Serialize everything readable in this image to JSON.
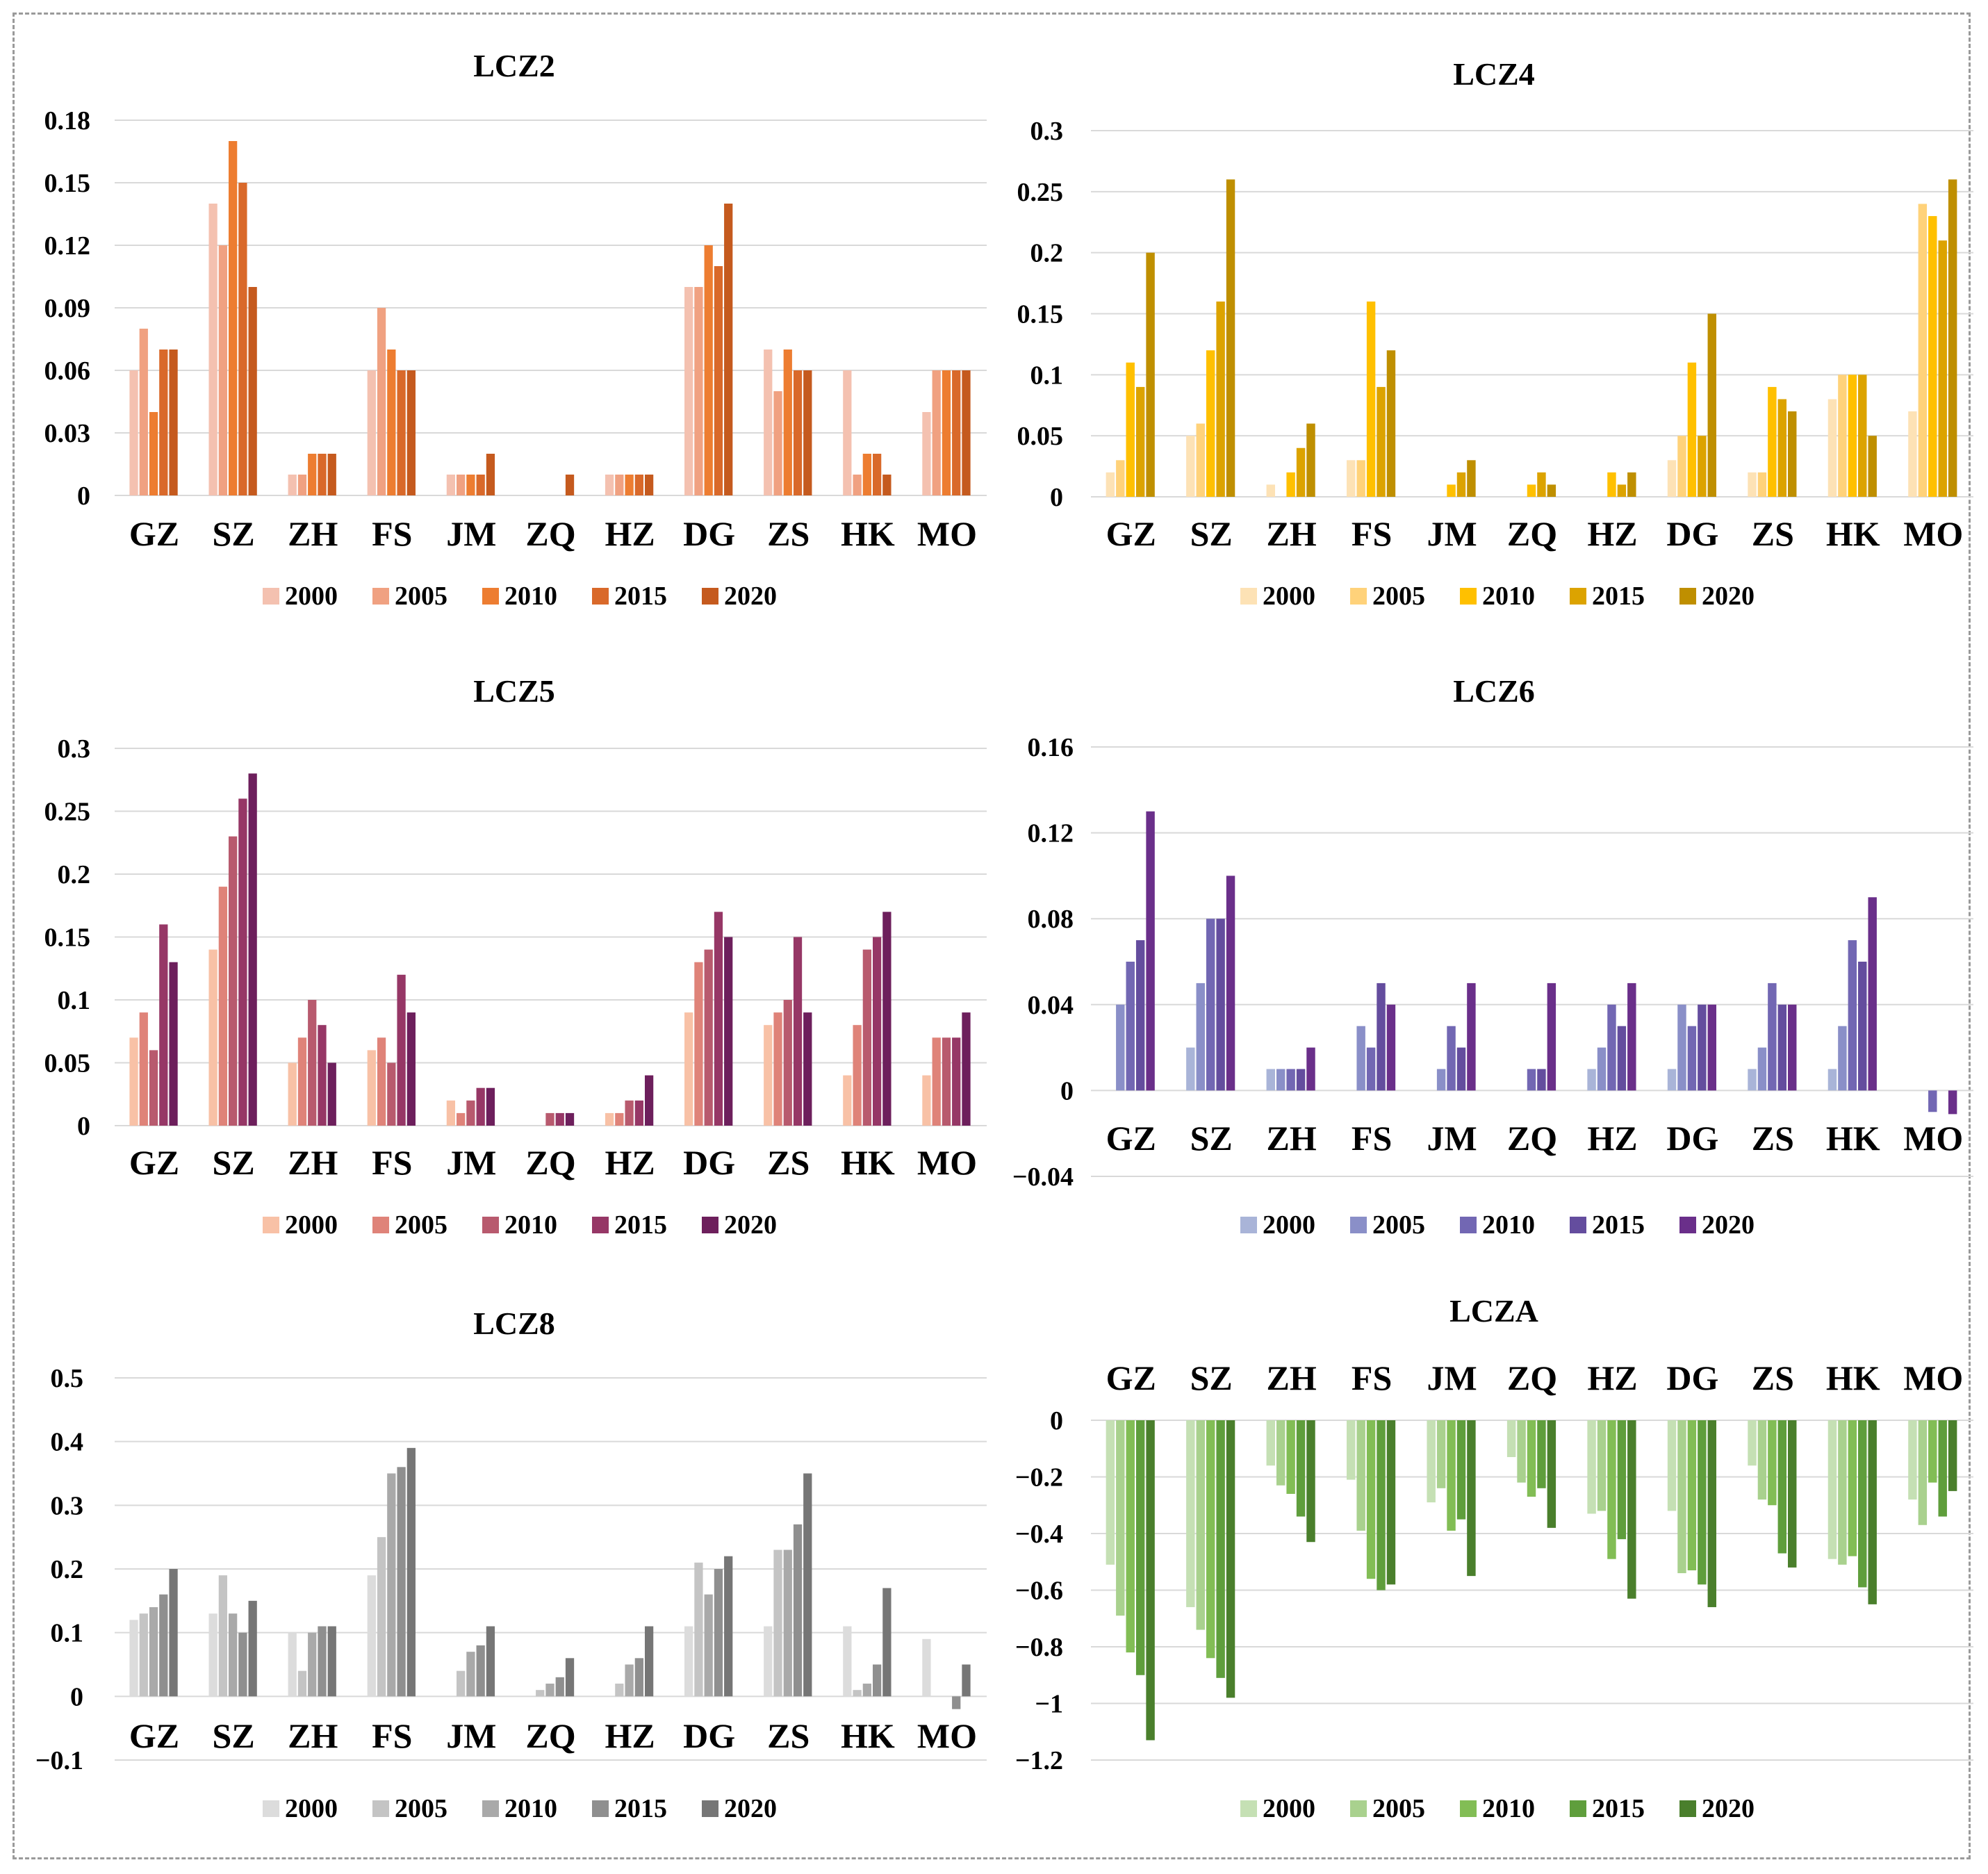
{
  "chart_data": [
    {
      "type": "bar",
      "title": "LCZ2",
      "categories": [
        "GZ",
        "SZ",
        "ZH",
        "FS",
        "JM",
        "ZQ",
        "HZ",
        "DG",
        "ZS",
        "HK",
        "MO"
      ],
      "yticks": [
        "0",
        "0.03",
        "0.06",
        "0.09",
        "0.12",
        "0.15",
        "0.18"
      ],
      "ylim": [
        0,
        0.18
      ],
      "series": [
        {
          "name": "2000",
          "color": "#f4c1b0",
          "values": [
            0.06,
            0.14,
            0.01,
            0.06,
            0.01,
            0,
            0.01,
            0.1,
            0.07,
            0.06,
            0.04
          ]
        },
        {
          "name": "2005",
          "color": "#f0a181",
          "values": [
            0.08,
            0.12,
            0.01,
            0.09,
            0.01,
            0,
            0.01,
            0.1,
            0.05,
            0.01,
            0.06
          ]
        },
        {
          "name": "2010",
          "color": "#ed7d31",
          "values": [
            0.04,
            0.17,
            0.02,
            0.07,
            0.01,
            0,
            0.01,
            0.12,
            0.07,
            0.02,
            0.06
          ]
        },
        {
          "name": "2015",
          "color": "#d9692a",
          "values": [
            0.07,
            0.15,
            0.02,
            0.06,
            0.01,
            0,
            0.01,
            0.11,
            0.06,
            0.02,
            0.06
          ]
        },
        {
          "name": "2020",
          "color": "#c55a1e",
          "values": [
            0.07,
            0.1,
            0.02,
            0.06,
            0.02,
            0.01,
            0.01,
            0.14,
            0.06,
            0.01,
            0.06
          ]
        }
      ]
    },
    {
      "type": "bar",
      "title": "LCZ4",
      "categories": [
        "GZ",
        "SZ",
        "ZH",
        "FS",
        "JM",
        "ZQ",
        "HZ",
        "DG",
        "ZS",
        "HK",
        "MO"
      ],
      "yticks": [
        "0",
        "0.05",
        "0.1",
        "0.15",
        "0.2",
        "0.25",
        "0.3"
      ],
      "ylim": [
        0,
        0.3
      ],
      "series": [
        {
          "name": "2000",
          "color": "#fde2b5",
          "values": [
            0.02,
            0.05,
            0.01,
            0.03,
            0,
            0,
            0,
            0.03,
            0.02,
            0.08,
            0.07
          ]
        },
        {
          "name": "2005",
          "color": "#ffd27a",
          "values": [
            0.03,
            0.06,
            0,
            0.03,
            0,
            0,
            0,
            0.05,
            0.02,
            0.1,
            0.24
          ]
        },
        {
          "name": "2010",
          "color": "#ffc000",
          "values": [
            0.11,
            0.12,
            0.02,
            0.16,
            0.01,
            0.01,
            0.02,
            0.11,
            0.09,
            0.1,
            0.23
          ]
        },
        {
          "name": "2015",
          "color": "#dca300",
          "values": [
            0.09,
            0.16,
            0.04,
            0.09,
            0.02,
            0.02,
            0.01,
            0.05,
            0.08,
            0.1,
            0.21
          ]
        },
        {
          "name": "2020",
          "color": "#bf8f00",
          "values": [
            0.2,
            0.26,
            0.06,
            0.12,
            0.03,
            0.01,
            0.02,
            0.15,
            0.07,
            0.05,
            0.26
          ]
        }
      ]
    },
    {
      "type": "bar",
      "title": "LCZ5",
      "categories": [
        "GZ",
        "SZ",
        "ZH",
        "FS",
        "JM",
        "ZQ",
        "HZ",
        "DG",
        "ZS",
        "HK",
        "MO"
      ],
      "yticks": [
        "0",
        "0.05",
        "0.1",
        "0.15",
        "0.2",
        "0.25",
        "0.3"
      ],
      "ylim": [
        0,
        0.3
      ],
      "series": [
        {
          "name": "2000",
          "color": "#f8c1a6",
          "values": [
            0.07,
            0.14,
            0.05,
            0.06,
            0.02,
            0,
            0.01,
            0.09,
            0.08,
            0.04,
            0.04
          ]
        },
        {
          "name": "2005",
          "color": "#df8379",
          "values": [
            0.09,
            0.19,
            0.07,
            0.07,
            0.01,
            0,
            0.01,
            0.13,
            0.09,
            0.08,
            0.07
          ]
        },
        {
          "name": "2010",
          "color": "#b85a6e",
          "values": [
            0.06,
            0.23,
            0.1,
            0.05,
            0.02,
            0.01,
            0.02,
            0.14,
            0.1,
            0.14,
            0.07
          ]
        },
        {
          "name": "2015",
          "color": "#963766",
          "values": [
            0.16,
            0.26,
            0.08,
            0.12,
            0.03,
            0.01,
            0.02,
            0.17,
            0.15,
            0.15,
            0.07
          ]
        },
        {
          "name": "2020",
          "color": "#6d1f5c",
          "values": [
            0.13,
            0.28,
            0.05,
            0.09,
            0.03,
            0.01,
            0.04,
            0.15,
            0.09,
            0.17,
            0.09
          ]
        }
      ]
    },
    {
      "type": "bar",
      "title": "LCZ6",
      "categories": [
        "GZ",
        "SZ",
        "ZH",
        "FS",
        "JM",
        "ZQ",
        "HZ",
        "DG",
        "ZS",
        "HK",
        "MO"
      ],
      "yticks": [
        "−0.04",
        "0",
        "0.04",
        "0.08",
        "0.12",
        "0.16"
      ],
      "ylim": [
        -0.04,
        0.16
      ],
      "series": [
        {
          "name": "2000",
          "color": "#a9b4d8",
          "values": [
            0,
            0.02,
            0.01,
            0,
            0,
            0,
            0.01,
            0.01,
            0.01,
            0.01,
            0
          ]
        },
        {
          "name": "2005",
          "color": "#8a8fc8",
          "values": [
            0.04,
            0.05,
            0.01,
            0.03,
            0.01,
            0,
            0.02,
            0.04,
            0.02,
            0.03,
            0
          ]
        },
        {
          "name": "2010",
          "color": "#7267b3",
          "values": [
            0.06,
            0.08,
            0.01,
            0.02,
            0.03,
            0.01,
            0.04,
            0.03,
            0.05,
            0.07,
            -0.01
          ]
        },
        {
          "name": "2015",
          "color": "#644d9e",
          "values": [
            0.07,
            0.08,
            0.01,
            0.05,
            0.02,
            0.01,
            0.03,
            0.04,
            0.04,
            0.06,
            0
          ]
        },
        {
          "name": "2020",
          "color": "#6a2f8a",
          "values": [
            0.13,
            0.1,
            0.02,
            0.04,
            0.05,
            0.05,
            0.05,
            0.04,
            0.04,
            0.09,
            -0.011
          ]
        }
      ]
    },
    {
      "type": "bar",
      "title": "LCZ8",
      "categories": [
        "GZ",
        "SZ",
        "ZH",
        "FS",
        "JM",
        "ZQ",
        "HZ",
        "DG",
        "ZS",
        "HK",
        "MO"
      ],
      "yticks": [
        "−0.1",
        "0",
        "0.1",
        "0.2",
        "0.3",
        "0.4",
        "0.5"
      ],
      "ylim": [
        -0.1,
        0.5
      ],
      "series": [
        {
          "name": "2000",
          "color": "#dcdcdc",
          "values": [
            0.12,
            0.13,
            0.1,
            0.19,
            0,
            0,
            0,
            0.11,
            0.11,
            0.11,
            0.09
          ]
        },
        {
          "name": "2005",
          "color": "#c4c4c4",
          "values": [
            0.13,
            0.19,
            0.04,
            0.25,
            0.04,
            0.01,
            0.02,
            0.21,
            0.23,
            0.01,
            0
          ]
        },
        {
          "name": "2010",
          "color": "#a9a9a9",
          "values": [
            0.14,
            0.13,
            0.1,
            0.35,
            0.07,
            0.02,
            0.05,
            0.16,
            0.23,
            0.02,
            0
          ]
        },
        {
          "name": "2015",
          "color": "#8f8f8f",
          "values": [
            0.16,
            0.1,
            0.11,
            0.36,
            0.08,
            0.03,
            0.06,
            0.2,
            0.27,
            0.05,
            -0.02
          ]
        },
        {
          "name": "2020",
          "color": "#767676",
          "values": [
            0.2,
            0.15,
            0.11,
            0.39,
            0.11,
            0.06,
            0.11,
            0.22,
            0.35,
            0.17,
            0.05
          ]
        }
      ]
    },
    {
      "type": "bar",
      "title": "LCZA",
      "categories": [
        "GZ",
        "SZ",
        "ZH",
        "FS",
        "JM",
        "ZQ",
        "HZ",
        "DG",
        "ZS",
        "HK",
        "MO"
      ],
      "yticks": [
        "−1.2",
        "−1",
        "−0.8",
        "−0.6",
        "−0.4",
        "−0.2",
        "0"
      ],
      "ylim": [
        -1.2,
        0
      ],
      "series": [
        {
          "name": "2000",
          "color": "#c5e0b4",
          "values": [
            -0.51,
            -0.66,
            -0.16,
            -0.21,
            -0.29,
            -0.13,
            -0.33,
            -0.32,
            -0.16,
            -0.49,
            -0.28
          ]
        },
        {
          "name": "2005",
          "color": "#a9d18e",
          "values": [
            -0.69,
            -0.74,
            -0.23,
            -0.39,
            -0.24,
            -0.22,
            -0.32,
            -0.54,
            -0.28,
            -0.51,
            -0.37
          ]
        },
        {
          "name": "2010",
          "color": "#82bd55",
          "values": [
            -0.82,
            -0.84,
            -0.26,
            -0.56,
            -0.39,
            -0.27,
            -0.49,
            -0.53,
            -0.3,
            -0.48,
            -0.22
          ]
        },
        {
          "name": "2015",
          "color": "#5f9e3c",
          "values": [
            -0.9,
            -0.91,
            -0.34,
            -0.6,
            -0.35,
            -0.24,
            -0.42,
            -0.58,
            -0.47,
            -0.59,
            -0.34
          ]
        },
        {
          "name": "2020",
          "color": "#4a7f2c",
          "values": [
            -1.13,
            -0.98,
            -0.43,
            -0.58,
            -0.55,
            -0.38,
            -0.63,
            -0.66,
            -0.52,
            -0.65,
            -0.25
          ]
        }
      ]
    }
  ]
}
